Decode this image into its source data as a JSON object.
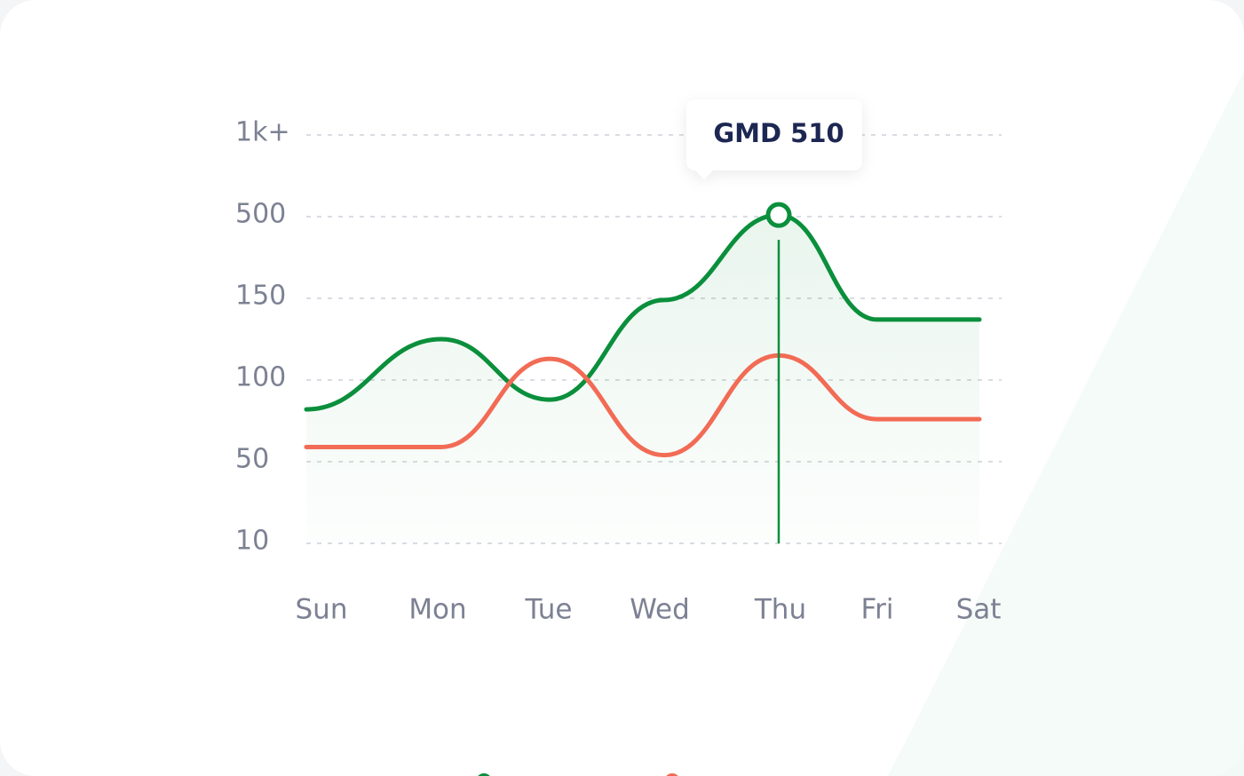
{
  "chart_data": {
    "type": "line",
    "categories": [
      "Sun",
      "Mon",
      "Tue",
      "Wed",
      "Thu",
      "Fri",
      "Sat"
    ],
    "series": [
      {
        "color": "#0b8f3c",
        "values": [
          82,
          125,
          88,
          149,
          510,
          137,
          137
        ]
      },
      {
        "color": "#f26b55",
        "values": [
          59,
          59,
          113,
          54,
          115,
          76,
          76
        ]
      }
    ],
    "ylim": [
      10,
      1000
    ],
    "yticks": [
      10,
      50,
      100,
      150,
      500,
      {
        "value": 1000,
        "label": "1k+"
      }
    ],
    "grid": true,
    "annotation": "GMD 510"
  }
}
